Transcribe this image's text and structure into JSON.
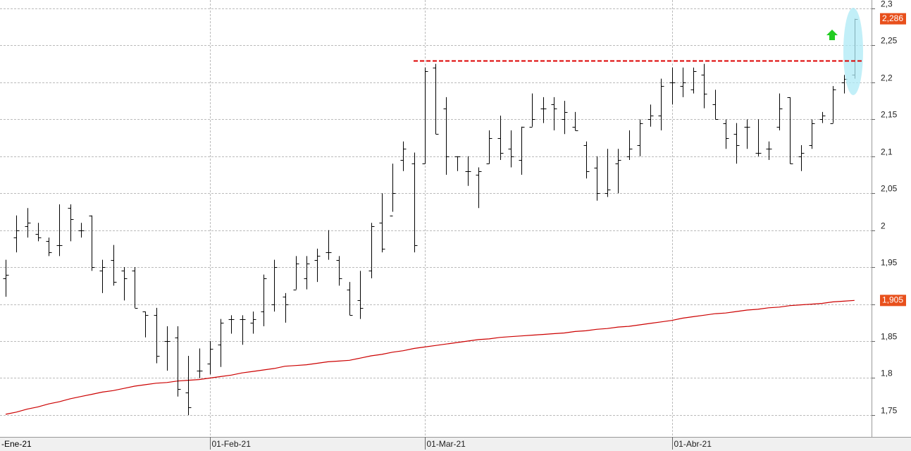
{
  "chart_data": {
    "type": "ohlc",
    "categories": [
      null,
      null,
      null,
      null,
      null,
      null,
      null,
      null,
      null,
      null,
      null,
      null,
      null,
      null,
      null,
      null,
      null,
      null,
      null,
      "01-Feb-21",
      null,
      null,
      null,
      null,
      null,
      null,
      null,
      null,
      null,
      null,
      null,
      null,
      null,
      null,
      null,
      null,
      null,
      null,
      null,
      "01-Mar-21",
      null,
      null,
      null,
      null,
      null,
      null,
      null,
      null,
      null,
      null,
      null,
      null,
      null,
      null,
      null,
      null,
      null,
      null,
      null,
      null,
      null,
      null,
      "01-Abr-21",
      null,
      null,
      null,
      null,
      null,
      null,
      null,
      null,
      null,
      null,
      null,
      null,
      null,
      null,
      null,
      null,
      null
    ],
    "first_month_label": "-Ene-21",
    "open": [
      1.935,
      1.99,
      2.005,
      1.995,
      1.985,
      1.98,
      2.03,
      2.0,
      2.02,
      1.945,
      1.96,
      1.945,
      1.945,
      1.89,
      1.885,
      1.85,
      1.855,
      1.78,
      1.81,
      1.82,
      1.845,
      1.88,
      1.88,
      1.875,
      1.89,
      1.9,
      1.91,
      1.92,
      1.935,
      1.96,
      1.97,
      1.96,
      1.92,
      1.905,
      1.945,
      2.01,
      2.02,
      2.095,
      2.09,
      2.09,
      2.22,
      2.165,
      2.1,
      2.08,
      2.075,
      2.09,
      2.125,
      2.11,
      2.095,
      2.14,
      2.165,
      2.17,
      2.15,
      2.14,
      2.115,
      2.085,
      2.05,
      2.09,
      2.1,
      2.115,
      2.15,
      2.155,
      2.2,
      2.195,
      2.19,
      2.21,
      2.17,
      2.145,
      2.13,
      2.14,
      2.105,
      2.11,
      2.14,
      2.18,
      2.1,
      2.115,
      2.15,
      2.145,
      2.2,
      2.21
    ],
    "high": [
      1.96,
      2.02,
      2.03,
      2.01,
      1.99,
      2.035,
      2.035,
      2.01,
      2.02,
      1.96,
      1.98,
      1.95,
      1.95,
      1.89,
      1.895,
      1.87,
      1.87,
      1.83,
      1.84,
      1.85,
      1.88,
      1.885,
      1.885,
      1.89,
      1.94,
      1.96,
      1.915,
      1.965,
      1.965,
      1.975,
      2.0,
      1.965,
      1.93,
      1.945,
      2.01,
      2.05,
      2.09,
      2.12,
      2.105,
      2.22,
      2.225,
      2.18,
      2.1,
      2.1,
      2.085,
      2.135,
      2.155,
      2.135,
      2.14,
      2.185,
      2.18,
      2.18,
      2.175,
      2.16,
      2.12,
      2.1,
      2.11,
      2.11,
      2.135,
      2.15,
      2.17,
      2.205,
      2.22,
      2.22,
      2.22,
      2.225,
      2.19,
      2.15,
      2.145,
      2.15,
      2.15,
      2.12,
      2.185,
      2.18,
      2.115,
      2.15,
      2.16,
      2.195,
      2.21,
      2.286
    ],
    "low": [
      1.91,
      1.97,
      1.99,
      1.985,
      1.965,
      1.965,
      1.985,
      1.99,
      1.945,
      1.915,
      1.925,
      1.905,
      1.895,
      1.855,
      1.82,
      1.81,
      1.775,
      1.75,
      1.8,
      1.805,
      1.815,
      1.86,
      1.845,
      1.86,
      1.87,
      1.89,
      1.875,
      1.92,
      1.92,
      1.93,
      1.96,
      1.925,
      1.885,
      1.88,
      1.935,
      1.97,
      2.025,
      2.08,
      1.97,
      2.09,
      2.13,
      2.075,
      2.08,
      2.06,
      2.03,
      2.09,
      2.095,
      2.085,
      2.075,
      2.14,
      2.145,
      2.135,
      2.13,
      2.135,
      2.07,
      2.04,
      2.045,
      2.05,
      2.095,
      2.1,
      2.14,
      2.135,
      2.17,
      2.18,
      2.185,
      2.165,
      2.15,
      2.11,
      2.09,
      2.11,
      2.1,
      2.095,
      2.135,
      2.09,
      2.08,
      2.11,
      2.145,
      2.145,
      2.185,
      2.205
    ],
    "close": [
      1.94,
      2.0,
      2.01,
      1.99,
      1.97,
      1.98,
      2.015,
      2.0,
      1.95,
      1.95,
      1.93,
      1.935,
      1.895,
      1.885,
      1.83,
      1.85,
      1.785,
      1.76,
      1.81,
      1.84,
      1.875,
      1.88,
      1.88,
      1.88,
      1.935,
      1.95,
      1.9,
      1.955,
      1.955,
      1.965,
      1.97,
      1.935,
      1.885,
      1.895,
      2.005,
      1.975,
      2.05,
      2.11,
      1.98,
      2.215,
      2.13,
      2.1,
      2.1,
      2.08,
      2.08,
      2.125,
      2.105,
      2.1,
      2.14,
      2.15,
      2.165,
      2.165,
      2.16,
      2.135,
      2.08,
      2.05,
      2.055,
      2.095,
      2.11,
      2.145,
      2.155,
      2.195,
      2.2,
      2.2,
      2.215,
      2.185,
      2.15,
      2.125,
      2.115,
      2.14,
      2.105,
      2.11,
      2.165,
      2.09,
      2.105,
      2.145,
      2.155,
      2.19,
      2.205,
      2.286
    ],
    "color": "#000000",
    "last_close_label": "2,286",
    "ma": {
      "color": "#cc0000",
      "last_label": "1,905",
      "values": [
        1.751,
        1.754,
        1.758,
        1.761,
        1.765,
        1.768,
        1.772,
        1.775,
        1.778,
        1.781,
        1.783,
        1.786,
        1.789,
        1.791,
        1.793,
        1.794,
        1.796,
        1.797,
        1.798,
        1.8,
        1.802,
        1.804,
        1.807,
        1.809,
        1.811,
        1.813,
        1.816,
        1.817,
        1.818,
        1.82,
        1.822,
        1.823,
        1.824,
        1.827,
        1.83,
        1.832,
        1.835,
        1.837,
        1.84,
        1.842,
        1.844,
        1.846,
        1.848,
        1.85,
        1.852,
        1.853,
        1.855,
        1.856,
        1.857,
        1.858,
        1.859,
        1.86,
        1.861,
        1.863,
        1.864,
        1.866,
        1.867,
        1.869,
        1.87,
        1.872,
        1.874,
        1.876,
        1.878,
        1.881,
        1.883,
        1.885,
        1.887,
        1.888,
        1.89,
        1.892,
        1.893,
        1.895,
        1.896,
        1.898,
        1.899,
        1.9,
        1.901,
        1.903,
        1.904,
        1.905
      ]
    },
    "resistance": {
      "value": 2.229,
      "color": "#dd0000"
    },
    "ylim": [
      1.7204,
      2.3114
    ],
    "yticks": [
      {
        "value": 1.75,
        "label": "1,75"
      },
      {
        "value": 1.8,
        "label": "1,8"
      },
      {
        "value": 1.85,
        "label": "1,85"
      },
      {
        "value": 1.9,
        "label": "1,9"
      },
      {
        "value": 1.95,
        "label": "1,95"
      },
      {
        "value": 2,
        "label": "2"
      },
      {
        "value": 2.05,
        "label": "2,05"
      },
      {
        "value": 2.1,
        "label": "2,1"
      },
      {
        "value": 2.15,
        "label": "2,15"
      },
      {
        "value": 2.2,
        "label": "2,2"
      },
      {
        "value": 2.25,
        "label": "2,25"
      },
      {
        "value": 2.3,
        "label": "2,3"
      }
    ],
    "grid": true
  }
}
